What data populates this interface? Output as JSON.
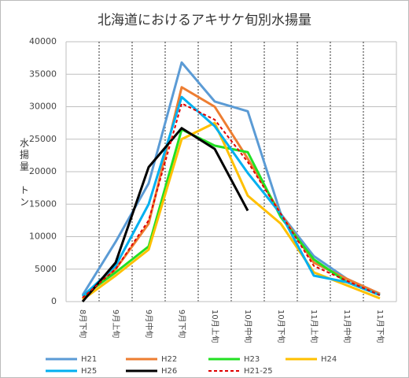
{
  "chart_data": {
    "type": "line",
    "title": "北海道におけるアキサケ旬別水揚量",
    "ylabel": "水揚量　トン",
    "categories": [
      "8月下旬",
      "9月上旬",
      "9月中旬",
      "9月下旬",
      "10月上旬",
      "10月中旬",
      "10月下旬",
      "11月上旬",
      "11月中旬",
      "11月下旬"
    ],
    "ylim": [
      0,
      40000
    ],
    "yticks": [
      0,
      5000,
      10000,
      15000,
      20000,
      25000,
      30000,
      35000,
      40000
    ],
    "grid": true,
    "series": [
      {
        "name": "H21",
        "color": "#5b9bd5",
        "style": "solid",
        "values": [
          1000,
          9200,
          18200,
          36800,
          30800,
          29300,
          13500,
          7000,
          3500,
          1200
        ]
      },
      {
        "name": "H22",
        "color": "#ed7d31",
        "style": "solid",
        "values": [
          500,
          5000,
          12000,
          33000,
          30000,
          22000,
          13500,
          6000,
          3500,
          1200
        ]
      },
      {
        "name": "H23",
        "color": "#22e022",
        "style": "solid",
        "values": [
          800,
          4500,
          8500,
          26500,
          24000,
          23000,
          13000,
          6500,
          3000,
          1000
        ]
      },
      {
        "name": "H24",
        "color": "#ffc000",
        "style": "solid",
        "values": [
          300,
          4000,
          8000,
          25000,
          27500,
          16300,
          12000,
          4500,
          2500,
          500
        ]
      },
      {
        "name": "H25",
        "color": "#00b0f0",
        "style": "solid",
        "values": [
          800,
          5500,
          15000,
          31500,
          27000,
          19800,
          13500,
          4000,
          3000,
          1000
        ]
      },
      {
        "name": "H26",
        "color": "#000000",
        "style": "solid",
        "values": [
          0,
          6000,
          20700,
          26700,
          23500,
          14000,
          null,
          null,
          null,
          null
        ]
      },
      {
        "name": "H21-25",
        "color": "#e00000",
        "style": "dashed",
        "values": [
          600,
          5000,
          12500,
          30500,
          28000,
          21500,
          13500,
          5500,
          3200,
          1000
        ]
      }
    ]
  }
}
